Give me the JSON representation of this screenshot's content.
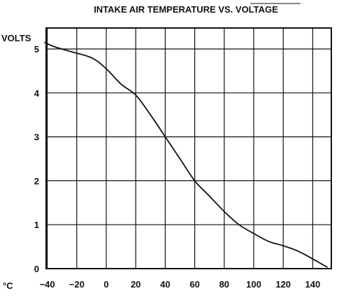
{
  "chart_data": {
    "type": "line",
    "title": "INTAKE AIR TEMPERATURE VS. VOLTAGE",
    "ylabel": "VOLTS",
    "xunit": "°C",
    "xlim": [
      -40,
      150
    ],
    "ylim": [
      0,
      5.3
    ],
    "xticks": [
      -40,
      -20,
      0,
      20,
      40,
      60,
      80,
      100,
      120,
      140
    ],
    "yticks": [
      0,
      1,
      2,
      3,
      4,
      5
    ],
    "grid": true,
    "series": [
      {
        "x": [
          -42,
          -35,
          -25,
          -10,
          0,
          10,
          20,
          30,
          40,
          50,
          60,
          70,
          80,
          90,
          100,
          110,
          120,
          130,
          140,
          150
        ],
        "y": [
          5.15,
          5.05,
          4.95,
          4.8,
          4.55,
          4.2,
          3.95,
          3.5,
          3.0,
          2.5,
          2.0,
          1.65,
          1.3,
          1.0,
          0.8,
          0.62,
          0.52,
          0.4,
          0.22,
          0.03
        ]
      }
    ]
  }
}
